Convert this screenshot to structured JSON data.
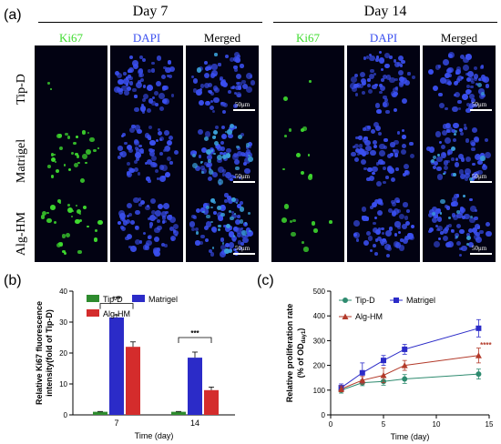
{
  "panel_a": {
    "label": "(a)",
    "days": [
      "Day 7",
      "Day 14"
    ],
    "columns": [
      "Ki67",
      "DAPI",
      "Merged"
    ],
    "rows": [
      "Tip-D",
      "Matrigel",
      "Alg-HM"
    ],
    "scalebar": "50μm",
    "colors": {
      "ki67": "#3fdc2f",
      "dapi": "#3a4ff0",
      "merged": "#3aa0d8",
      "background": "#020212"
    }
  },
  "chart_data": [
    {
      "type": "bar",
      "panel_label": "(b)",
      "ylabel": "Relative Ki67 fluorescence intensity(fold of Tip-D)",
      "xlabel": "Time (day)",
      "categories": [
        "7",
        "14"
      ],
      "ylim": [
        0,
        40
      ],
      "yticks": [
        0,
        10,
        20,
        30,
        40
      ],
      "series": [
        {
          "name": "Tip-D",
          "color": "#2e8b2e",
          "values": [
            1,
            1
          ],
          "errors": [
            0.1,
            0.1
          ]
        },
        {
          "name": "Matrigel",
          "color": "#2b2bc8",
          "values": [
            31.5,
            18.5
          ],
          "errors": [
            0.8,
            1.8
          ]
        },
        {
          "name": "Alg-HM",
          "color": "#d42c2c",
          "values": [
            22,
            8
          ],
          "errors": [
            1.6,
            1.0
          ]
        }
      ],
      "significance": [
        "***",
        "***"
      ],
      "legend": "top"
    },
    {
      "type": "line",
      "panel_label": "(c)",
      "ylabel": "Relative proliferation rate",
      "ylabel2": "(% of OD",
      "ylabel2_sub": "day1",
      "ylabel2_end": ")",
      "xlabel": "Time (day)",
      "xlim": [
        0,
        15
      ],
      "ylim": [
        0,
        500
      ],
      "xticks": [
        0,
        5,
        10,
        15
      ],
      "yticks": [
        0,
        100,
        200,
        300,
        400,
        500
      ],
      "x": [
        1,
        3,
        5,
        7,
        14
      ],
      "series": [
        {
          "name": "Tip-D",
          "color": "#2e8b6f",
          "marker": "circle",
          "values": [
            100,
            130,
            135,
            145,
            165
          ],
          "errors": [
            12,
            12,
            15,
            18,
            20
          ]
        },
        {
          "name": "Matrigel",
          "color": "#2b2bc8",
          "marker": "square",
          "values": [
            110,
            170,
            220,
            265,
            350
          ],
          "errors": [
            15,
            40,
            20,
            20,
            35
          ]
        },
        {
          "name": "Alg-HM",
          "color": "#b33a2a",
          "marker": "triangle",
          "values": [
            105,
            140,
            160,
            200,
            240
          ],
          "errors": [
            12,
            15,
            30,
            20,
            30
          ]
        }
      ],
      "significance": "****",
      "legend": "top-left"
    }
  ]
}
